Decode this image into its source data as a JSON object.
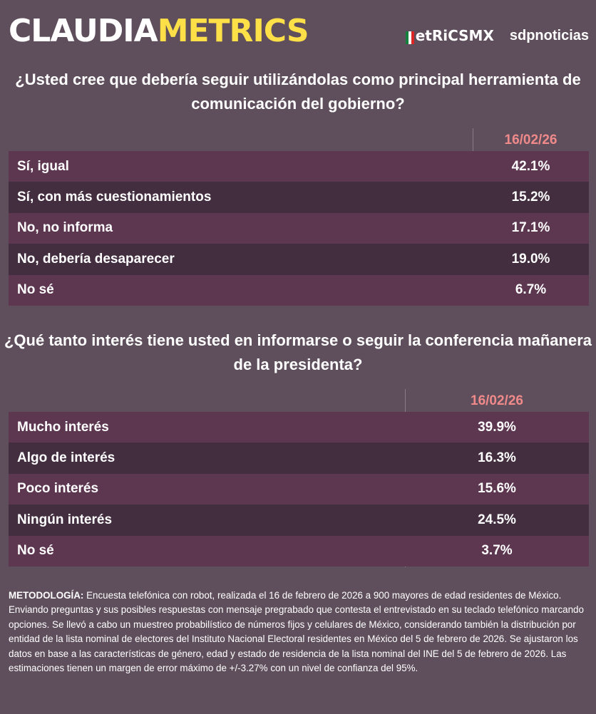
{
  "header": {
    "brand_part1": "CLAUDIA",
    "brand_part2": "METRICS",
    "logo1": "etRiCSMX",
    "logo2": "sdpnoticias",
    "colors": {
      "background": "#5f4f5c",
      "brand_yellow": "#fde047",
      "date": "#f08a8a",
      "row_odd": "#5d3650",
      "row_even": "#432e40"
    }
  },
  "q1": {
    "title": "¿Usted cree que debería seguir utilizándolas como principal herramienta de comunicación del gobierno?",
    "date": "16/02/26",
    "rows": [
      {
        "label": "Sí, igual",
        "value": "42.1%"
      },
      {
        "label": "Sí, con más cuestionamientos",
        "value": "15.2%"
      },
      {
        "label": "No, no informa",
        "value": "17.1%"
      },
      {
        "label": "No, debería desaparecer",
        "value": "19.0%"
      },
      {
        "label": "No sé",
        "value": "6.7%"
      }
    ]
  },
  "q2": {
    "title": "¿Qué tanto interés tiene usted en informarse o seguir la conferencia mañanera de la presidenta?",
    "date": "16/02/26",
    "rows": [
      {
        "label": "Mucho interés",
        "value": "39.9%"
      },
      {
        "label": "Algo de interés",
        "value": "16.3%"
      },
      {
        "label": "Poco interés",
        "value": "15.6%"
      },
      {
        "label": "Ningún interés",
        "value": "24.5%"
      },
      {
        "label": "No sé",
        "value": "3.7%"
      }
    ]
  },
  "methodology": {
    "label": "METODOLOGÍA:",
    "text": " Encuesta telefónica con robot, realizada el 16 de febrero de 2026 a 900 mayores de edad residentes de México. Enviando preguntas y sus posibles respuestas con mensaje pregrabado que contesta el entrevistado en su teclado telefónico marcando opciones. Se llevó a cabo un muestreo probabilístico de números fijos y celulares de México, considerando también la distribución por entidad de la lista nominal de electores del Instituto Nacional Electoral residentes en México del 5 de febrero de 2026. Se ajustaron los datos en base a las características de género, edad y estado de residencia de la lista nominal del INE del 5 de febrero de 2026. Las estimaciones tienen un margen de error máximo de +/-3.27% con un nivel de confianza del 95%."
  }
}
